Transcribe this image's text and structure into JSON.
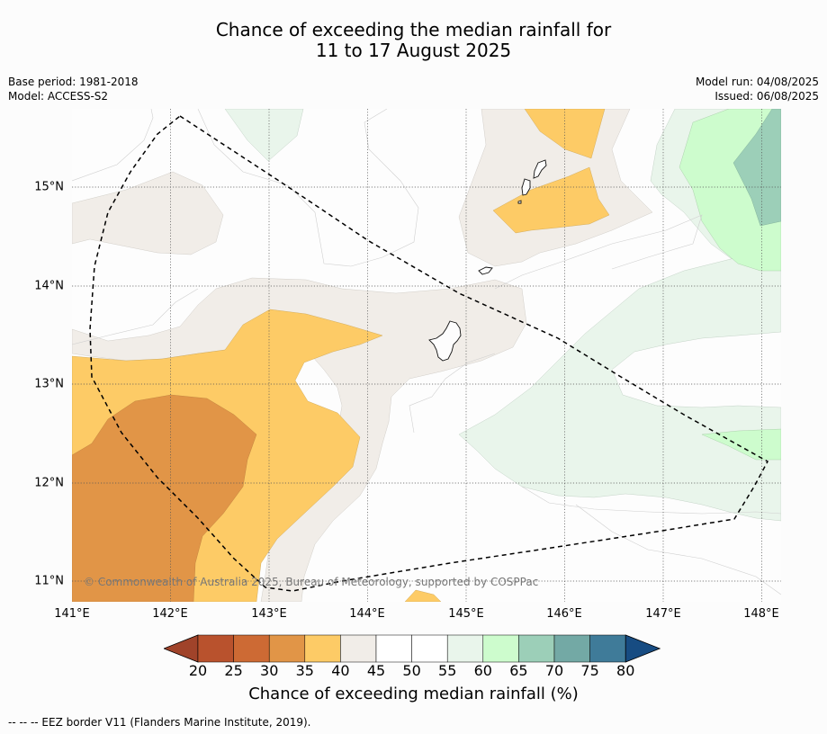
{
  "title_line1": "Chance of exceeding the median rainfall for",
  "title_line2": "11 to 17 August 2025",
  "base_period": "Base period: 1981-2018",
  "model": "Model: ACCESS-S2",
  "model_run": "Model run: 04/08/2025",
  "issued": "Issued: 06/08/2025",
  "copyright": "© Commonwealth of Australia 2025, Bureau of Meteorology, supported by COSPPac",
  "lat_labels": [
    "15°N",
    "14°N",
    "13°N",
    "12°N",
    "11°N"
  ],
  "lon_labels": [
    "141°E",
    "142°E",
    "143°E",
    "144°E",
    "145°E",
    "146°E",
    "147°E",
    "148°E"
  ],
  "colorbar": {
    "ticks": [
      "20",
      "25",
      "30",
      "35",
      "40",
      "45",
      "50",
      "55",
      "60",
      "65",
      "70",
      "75",
      "80"
    ],
    "colors": [
      "#a0432a",
      "#b9522d",
      "#cd6a34",
      "#e19547",
      "#fdcb66",
      "#f1ede8",
      "#ffffff",
      "#ffffff",
      "#e9f5eb",
      "#cdfccd",
      "#9ccfb8",
      "#73a9a5",
      "#3f7b99",
      "#174c82"
    ],
    "label": "Chance of exceeding median rainfall (%)"
  },
  "footer": "--  --  -- EEZ border V11 (Flanders Marine Institute, 2019)."
}
